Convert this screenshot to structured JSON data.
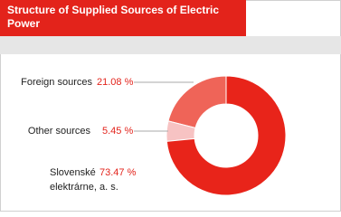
{
  "chart_data": {
    "type": "pie",
    "title": "Structure of Supplied Sources of Electric Power",
    "categories": [
      "Foreign sources",
      "Other sources",
      "Slovenské elektrárne, a. s."
    ],
    "values": [
      21.08,
      5.45,
      73.47
    ],
    "value_labels": [
      "21.08 %",
      "5.45 %",
      "73.47 %"
    ],
    "colors": [
      "#ef6458",
      "#f7c3c3",
      "#e8241a"
    ],
    "donut": true
  }
}
